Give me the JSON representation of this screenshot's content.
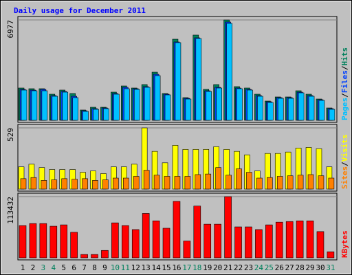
{
  "title": "Daily usage for December 2011",
  "legend_separator": "/",
  "categories": [
    "1",
    "2",
    "3",
    "4",
    "5",
    "6",
    "7",
    "8",
    "9",
    "10",
    "11",
    "12",
    "13",
    "14",
    "15",
    "16",
    "17",
    "18",
    "19",
    "20",
    "21",
    "22",
    "23",
    "24",
    "25",
    "26",
    "27",
    "28",
    "29",
    "30",
    "31"
  ],
  "category_colors": [
    "#000000",
    "#000000",
    "#00805c",
    "#00805c",
    "#000000",
    "#000000",
    "#000000",
    "#000000",
    "#000000",
    "#00805c",
    "#00805c",
    "#000000",
    "#000000",
    "#000000",
    "#000000",
    "#000000",
    "#00805c",
    "#00805c",
    "#000000",
    "#000000",
    "#000000",
    "#000000",
    "#000000",
    "#00805c",
    "#00805c",
    "#000000",
    "#000000",
    "#000000",
    "#000000",
    "#000000",
    "#00805c"
  ],
  "chart_data": [
    {
      "type": "bar",
      "ylim": [
        0,
        6977
      ],
      "yticks": [
        6977
      ],
      "series": [
        {
          "name": "Hits",
          "color": "#00805c",
          "values": [
            2246,
            2198,
            2198,
            1816,
            2103,
            1864,
            717,
            908,
            908,
            1959,
            2389,
            2246,
            2485,
            3345,
            1864,
            5639,
            1577,
            5926,
            2150,
            2485,
            6977,
            2342,
            2246,
            1816,
            1338,
            1625,
            1625,
            2055,
            1816,
            1481,
            860
          ]
        },
        {
          "name": "Files",
          "color": "#0040ff",
          "values": [
            2150,
            2103,
            2150,
            1720,
            2008,
            1672,
            669,
            813,
            860,
            1864,
            2294,
            2198,
            2342,
            3201,
            1816,
            5448,
            1529,
            5735,
            2055,
            2294,
            6834,
            2246,
            2150,
            1720,
            1290,
            1577,
            1577,
            1959,
            1720,
            1433,
            813
          ]
        },
        {
          "name": "Pages",
          "color": "#00c0ff",
          "values": [
            2103,
            2055,
            2055,
            1672,
            1959,
            1577,
            621,
            765,
            813,
            1816,
            2198,
            2150,
            2294,
            3106,
            1768,
            5400,
            1481,
            5687,
            2008,
            2246,
            6738,
            2198,
            2103,
            1672,
            1242,
            1529,
            1529,
            1911,
            1672,
            1385,
            765
          ]
        }
      ]
    },
    {
      "type": "bar",
      "ylim": [
        0,
        529
      ],
      "yticks": [
        529
      ],
      "series": [
        {
          "name": "Visits",
          "color": "#ffff00",
          "values": [
            192,
            215,
            186,
            169,
            169,
            169,
            145,
            157,
            134,
            192,
            192,
            215,
            529,
            326,
            227,
            378,
            343,
            343,
            343,
            366,
            343,
            326,
            296,
            157,
            308,
            308,
            320,
            355,
            360,
            349,
            192
          ]
        },
        {
          "name": "Sites",
          "color": "#ff8000",
          "values": [
            90,
            100,
            75,
            80,
            90,
            85,
            90,
            75,
            80,
            95,
            95,
            110,
            163,
            120,
            110,
            110,
            110,
            125,
            130,
            186,
            120,
            175,
            145,
            95,
            100,
            110,
            115,
            120,
            125,
            115,
            95
          ]
        }
      ]
    },
    {
      "type": "bar",
      "ylim": [
        0,
        113432
      ],
      "yticks": [
        113432
      ],
      "series": [
        {
          "name": "KBytes",
          "color": "#ff0000",
          "values": [
            59833,
            63572,
            63572,
            58586,
            61079,
            47367,
            6233,
            6233,
            13712,
            64819,
            59833,
            52354,
            82270,
            68558,
            54847,
            104706,
            31163,
            95981,
            62325,
            62325,
            113432,
            57340,
            57340,
            52354,
            61079,
            66066,
            67312,
            68558,
            68558,
            48614,
            11219
          ]
        }
      ]
    }
  ]
}
